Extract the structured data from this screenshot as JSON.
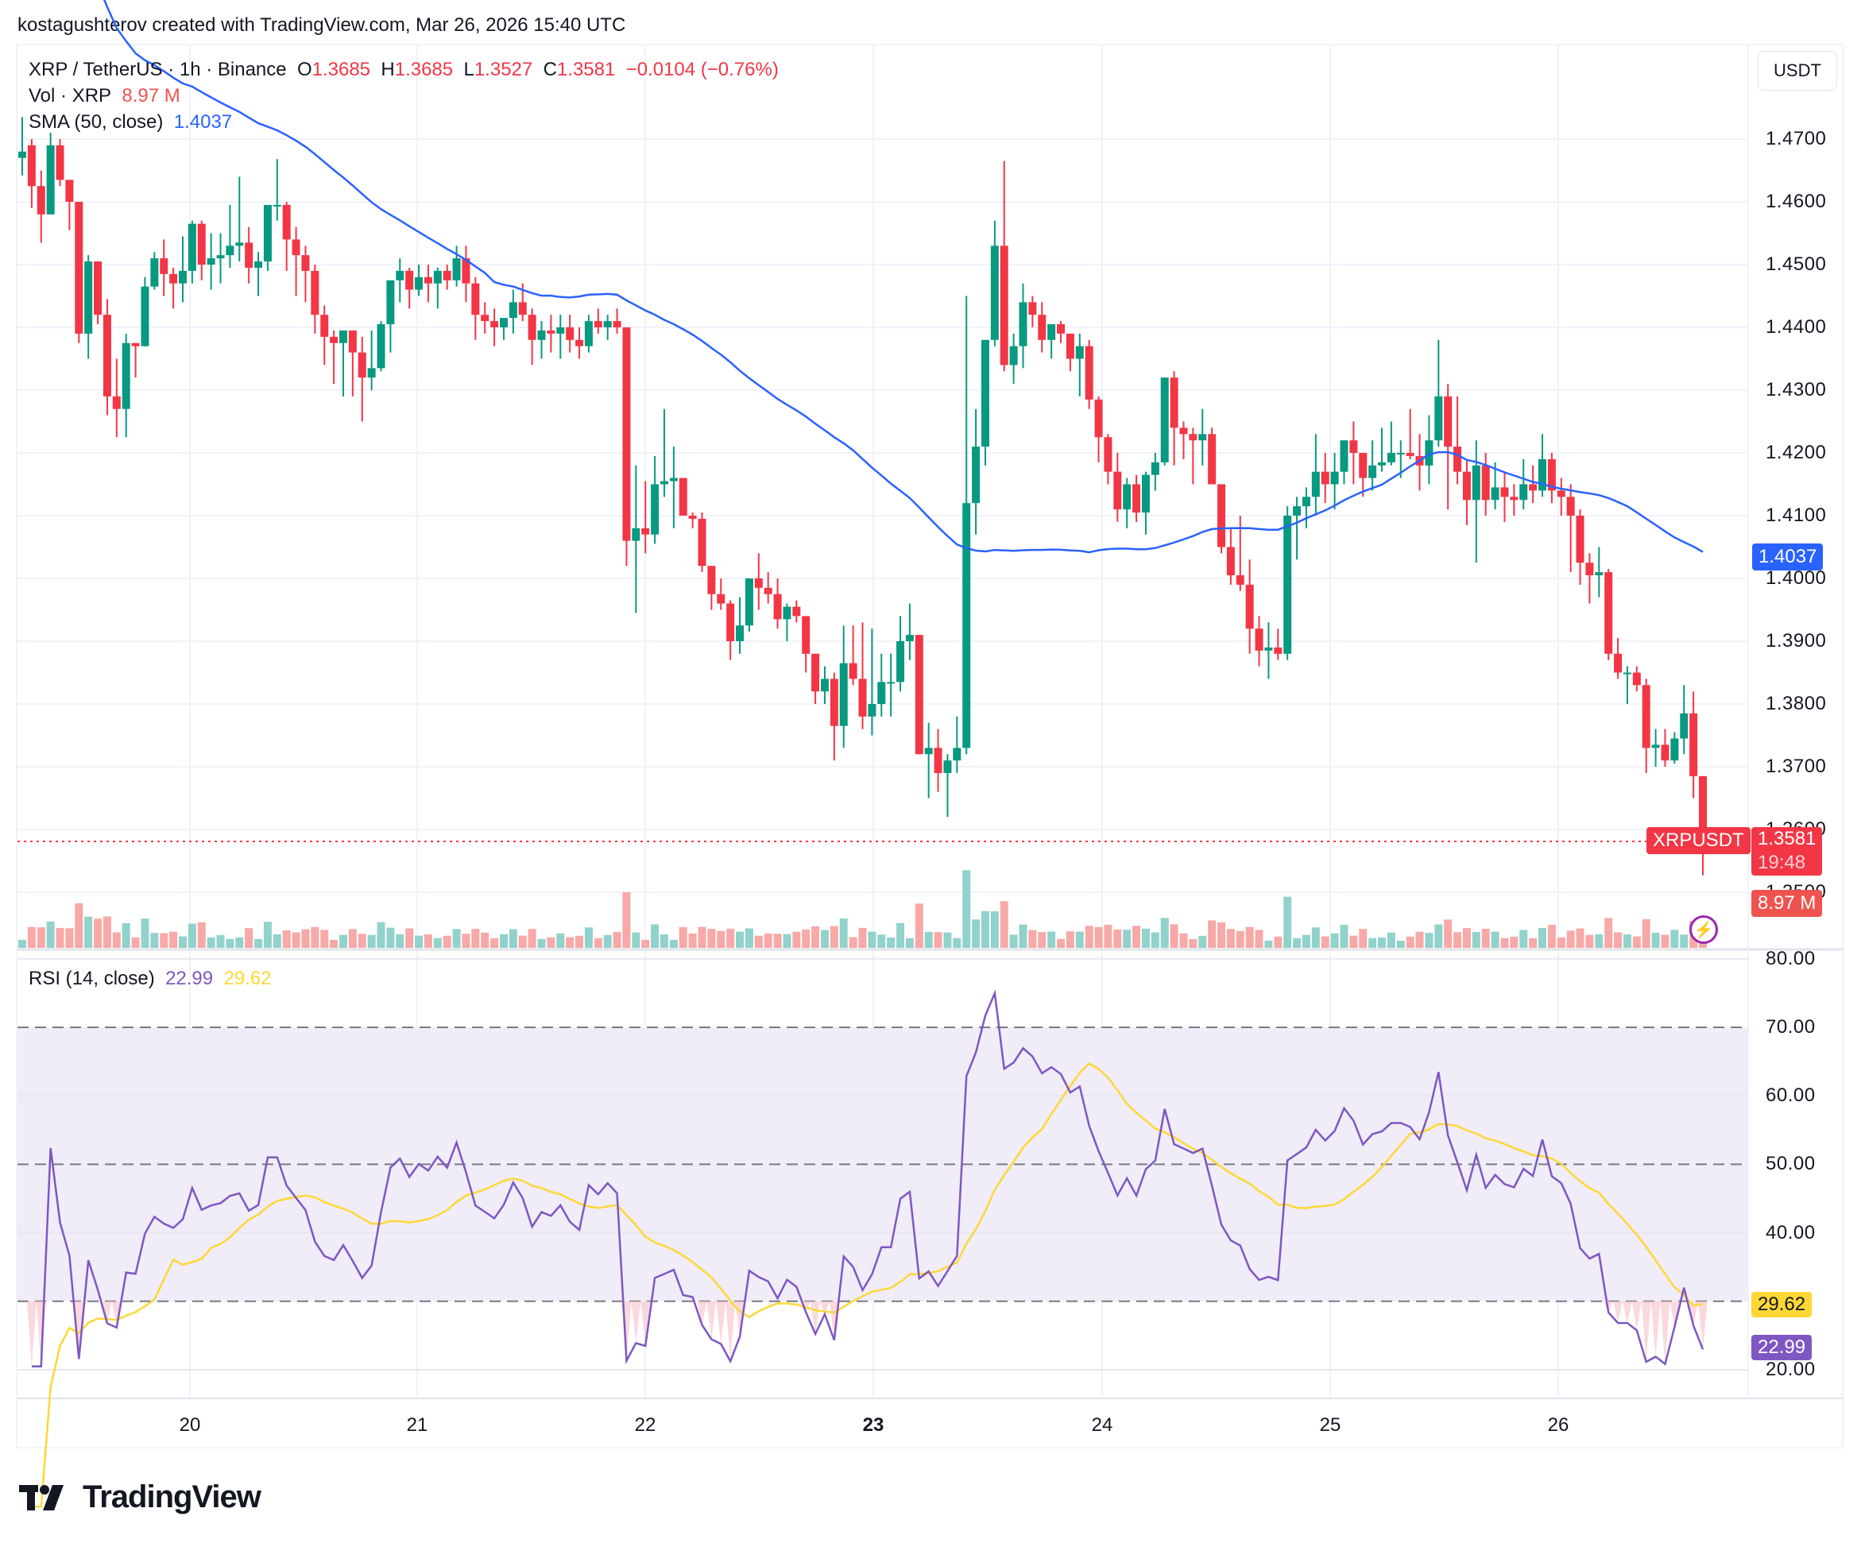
{
  "caption": "kostagushterov created with TradingView.com, Mar 26, 2026 15:40 UTC",
  "symbol_legend": {
    "title": "XRP / TetherUS · 1h · Binance",
    "o_label": "O",
    "o": "1.3685",
    "h_label": "H",
    "h": "1.3685",
    "l_label": "L",
    "l": "1.3527",
    "c_label": "C",
    "c": "1.3581",
    "change": "−0.0104 (−0.76%)"
  },
  "volume_legend": {
    "label": "Vol · XRP",
    "value": "8.97 M"
  },
  "sma_legend": {
    "label": "SMA (50, close)",
    "value": "1.4037"
  },
  "rsi_legend": {
    "label": "RSI (14, close)",
    "rsi": "22.99",
    "ma": "29.62"
  },
  "currency_button": "USDT",
  "price_axis": [
    "1.4700",
    "1.4600",
    "1.4500",
    "1.4400",
    "1.4300",
    "1.4200",
    "1.4100",
    "1.4000",
    "1.3900",
    "1.3800",
    "1.3700",
    "1.3600",
    "1.3500"
  ],
  "rsi_axis": [
    "80.00",
    "70.00",
    "60.00",
    "50.00",
    "40.00",
    "20.00"
  ],
  "time_axis": [
    {
      "label": "20",
      "bold": false
    },
    {
      "label": "21",
      "bold": false
    },
    {
      "label": "22",
      "bold": false
    },
    {
      "label": "23",
      "bold": true
    },
    {
      "label": "24",
      "bold": false
    },
    {
      "label": "25",
      "bold": false
    },
    {
      "label": "26",
      "bold": false
    }
  ],
  "tags": {
    "sma_price": "1.4037",
    "symbol": "XRPUSDT",
    "last_price": "1.3581",
    "countdown": "19:48",
    "volume": "8.97 M",
    "rsi_ma": "29.62",
    "rsi": "22.99"
  },
  "colors": {
    "up": "#089981",
    "down": "#f23645",
    "vol_up": "#92d2cc",
    "vol_down": "#f7a9a7",
    "sma": "#2962ff",
    "rsi": "#7e57c2",
    "rsi_ma": "#fdd835",
    "rsi_band": "#f0ecf8",
    "grid": "#f0f3fa"
  },
  "brand": "TradingView",
  "chart_data": {
    "type": "candlestick",
    "title": "XRP / TetherUS · 1h · Binance",
    "x_ticks": [
      "20",
      "21",
      "22",
      "23",
      "24",
      "25",
      "26"
    ],
    "ylabel": "USDT",
    "ylim": [
      1.345,
      1.478
    ],
    "last": {
      "open": 1.3685,
      "high": 1.3685,
      "low": 1.3527,
      "close": 1.3581,
      "change": -0.0104,
      "change_pct": -0.76
    },
    "candles_ohlc": [
      [
        1.467,
        1.4735,
        1.4642,
        1.468
      ],
      [
        1.469,
        1.47,
        1.459,
        1.4625
      ],
      [
        1.4625,
        1.465,
        1.4535,
        1.458
      ],
      [
        1.458,
        1.471,
        1.458,
        1.469
      ],
      [
        1.469,
        1.47,
        1.4625,
        1.4635
      ],
      [
        1.4635,
        1.461,
        1.4555,
        1.46
      ],
      [
        1.46,
        1.46,
        1.4375,
        1.439
      ],
      [
        1.439,
        1.4515,
        1.435,
        1.4505
      ],
      [
        1.4505,
        1.4505,
        1.4405,
        1.442
      ],
      [
        1.442,
        1.4445,
        1.426,
        1.429
      ],
      [
        1.429,
        1.435,
        1.4225,
        1.427
      ],
      [
        1.427,
        1.439,
        1.4225,
        1.4375
      ],
      [
        1.4375,
        1.4375,
        1.432,
        1.437
      ],
      [
        1.437,
        1.448,
        1.437,
        1.4465
      ],
      [
        1.4465,
        1.452,
        1.446,
        1.451
      ],
      [
        1.451,
        1.454,
        1.445,
        1.4485
      ],
      [
        1.4485,
        1.4495,
        1.443,
        1.447
      ],
      [
        1.447,
        1.4545,
        1.444,
        1.449
      ],
      [
        1.449,
        1.457,
        1.447,
        1.4565
      ],
      [
        1.4565,
        1.457,
        1.4475,
        1.45
      ],
      [
        1.45,
        1.455,
        1.446,
        1.451
      ],
      [
        1.451,
        1.455,
        1.447,
        1.4515
      ],
      [
        1.4515,
        1.4595,
        1.4495,
        1.453
      ],
      [
        1.453,
        1.464,
        1.4505,
        1.4535
      ],
      [
        1.4535,
        1.456,
        1.447,
        1.4495
      ],
      [
        1.4495,
        1.452,
        1.445,
        1.4505
      ],
      [
        1.4505,
        1.456,
        1.449,
        1.4595
      ],
      [
        1.4595,
        1.4668,
        1.457,
        1.4595
      ],
      [
        1.4595,
        1.46,
        1.449,
        1.454
      ],
      [
        1.454,
        1.456,
        1.445,
        1.4515
      ],
      [
        1.4515,
        1.453,
        1.444,
        1.449
      ],
      [
        1.449,
        1.45,
        1.439,
        1.442
      ],
      [
        1.442,
        1.4435,
        1.434,
        1.4385
      ],
      [
        1.4385,
        1.4395,
        1.431,
        1.4375
      ],
      [
        1.4375,
        1.439,
        1.429,
        1.4395
      ],
      [
        1.4395,
        1.4395,
        1.429,
        1.436
      ],
      [
        1.436,
        1.4385,
        1.425,
        1.432
      ],
      [
        1.432,
        1.4395,
        1.43,
        1.4335
      ],
      [
        1.4335,
        1.441,
        1.433,
        1.4405
      ],
      [
        1.4405,
        1.4465,
        1.436,
        1.4475
      ],
      [
        1.4475,
        1.451,
        1.444,
        1.449
      ],
      [
        1.449,
        1.4495,
        1.443,
        1.446
      ],
      [
        1.446,
        1.45,
        1.445,
        1.448
      ],
      [
        1.448,
        1.45,
        1.444,
        1.447
      ],
      [
        1.447,
        1.4495,
        1.443,
        1.449
      ],
      [
        1.449,
        1.45,
        1.446,
        1.4475
      ],
      [
        1.4475,
        1.453,
        1.4465,
        1.451
      ],
      [
        1.451,
        1.453,
        1.444,
        1.447
      ],
      [
        1.447,
        1.448,
        1.438,
        1.442
      ],
      [
        1.442,
        1.444,
        1.439,
        1.441
      ],
      [
        1.441,
        1.443,
        1.437,
        1.44
      ],
      [
        1.44,
        1.441,
        1.438,
        1.4415
      ],
      [
        1.4415,
        1.446,
        1.439,
        1.444
      ],
      [
        1.444,
        1.447,
        1.441,
        1.442
      ],
      [
        1.442,
        1.443,
        1.434,
        1.438
      ],
      [
        1.438,
        1.441,
        1.435,
        1.4395
      ],
      [
        1.4395,
        1.442,
        1.436,
        1.439
      ],
      [
        1.439,
        1.442,
        1.435,
        1.44
      ],
      [
        1.44,
        1.442,
        1.436,
        1.438
      ],
      [
        1.438,
        1.44,
        1.435,
        1.437
      ],
      [
        1.437,
        1.442,
        1.436,
        1.441
      ],
      [
        1.441,
        1.443,
        1.439,
        1.44
      ],
      [
        1.44,
        1.442,
        1.438,
        1.441
      ],
      [
        1.441,
        1.443,
        1.439,
        1.44
      ],
      [
        1.44,
        1.44,
        1.402,
        1.406
      ],
      [
        1.406,
        1.418,
        1.3945,
        1.408
      ],
      [
        1.408,
        1.4155,
        1.404,
        1.407
      ],
      [
        1.407,
        1.4195,
        1.4055,
        1.415
      ],
      [
        1.415,
        1.427,
        1.413,
        1.4155
      ],
      [
        1.4155,
        1.421,
        1.408,
        1.416
      ],
      [
        1.416,
        1.416,
        1.41,
        1.41
      ],
      [
        1.41,
        1.4105,
        1.408,
        1.4095
      ],
      [
        1.4095,
        1.4105,
        1.401,
        1.402
      ],
      [
        1.402,
        1.402,
        1.395,
        1.3975
      ],
      [
        1.3975,
        1.4,
        1.395,
        1.396
      ],
      [
        1.396,
        1.3965,
        1.387,
        1.39
      ],
      [
        1.39,
        1.397,
        1.388,
        1.3925
      ],
      [
        1.3925,
        1.398,
        1.3915,
        1.4
      ],
      [
        1.4,
        1.404,
        1.395,
        1.3985
      ],
      [
        1.3985,
        1.401,
        1.396,
        1.3975
      ],
      [
        1.3975,
        1.4,
        1.392,
        1.3935
      ],
      [
        1.3935,
        1.396,
        1.39,
        1.3955
      ],
      [
        1.3955,
        1.3965,
        1.393,
        1.394
      ],
      [
        1.394,
        1.394,
        1.385,
        1.388
      ],
      [
        1.388,
        1.388,
        1.38,
        1.382
      ],
      [
        1.382,
        1.386,
        1.38,
        1.384
      ],
      [
        1.384,
        1.385,
        1.371,
        1.3765
      ],
      [
        1.3765,
        1.3925,
        1.373,
        1.3865
      ],
      [
        1.3865,
        1.3925,
        1.383,
        1.384
      ],
      [
        1.384,
        1.393,
        1.376,
        1.378
      ],
      [
        1.378,
        1.392,
        1.375,
        1.38
      ],
      [
        1.38,
        1.388,
        1.378,
        1.3835
      ],
      [
        1.3835,
        1.388,
        1.378,
        1.3835
      ],
      [
        1.3835,
        1.394,
        1.382,
        1.39
      ],
      [
        1.39,
        1.396,
        1.387,
        1.391
      ],
      [
        1.391,
        1.391,
        1.372,
        1.372
      ],
      [
        1.372,
        1.377,
        1.365,
        1.373
      ],
      [
        1.373,
        1.376,
        1.366,
        1.369
      ],
      [
        1.369,
        1.372,
        1.362,
        1.371
      ],
      [
        1.371,
        1.378,
        1.369,
        1.373
      ],
      [
        1.373,
        1.445,
        1.372,
        1.412
      ],
      [
        1.412,
        1.427,
        1.407,
        1.421
      ],
      [
        1.421,
        1.431,
        1.418,
        1.438
      ],
      [
        1.438,
        1.457,
        1.437,
        1.453
      ],
      [
        1.453,
        1.4665,
        1.433,
        1.434
      ],
      [
        1.434,
        1.439,
        1.431,
        1.437
      ],
      [
        1.437,
        1.447,
        1.4335,
        1.444
      ],
      [
        1.444,
        1.445,
        1.44,
        1.442
      ],
      [
        1.442,
        1.444,
        1.436,
        1.438
      ],
      [
        1.438,
        1.4405,
        1.435,
        1.4405
      ],
      [
        1.4405,
        1.441,
        1.4375,
        1.439
      ],
      [
        1.439,
        1.438,
        1.433,
        1.435
      ],
      [
        1.435,
        1.439,
        1.429,
        1.437
      ],
      [
        1.437,
        1.438,
        1.427,
        1.4285
      ],
      [
        1.4285,
        1.429,
        1.4185,
        1.4225
      ],
      [
        1.4225,
        1.423,
        1.415,
        1.417
      ],
      [
        1.417,
        1.42,
        1.409,
        1.411
      ],
      [
        1.411,
        1.416,
        1.408,
        1.415
      ],
      [
        1.415,
        1.4165,
        1.409,
        1.4105
      ],
      [
        1.4105,
        1.417,
        1.407,
        1.4165
      ],
      [
        1.4165,
        1.42,
        1.414,
        1.4185
      ],
      [
        1.4185,
        1.432,
        1.418,
        1.432
      ],
      [
        1.432,
        1.433,
        1.418,
        1.424
      ],
      [
        1.424,
        1.425,
        1.419,
        1.423
      ],
      [
        1.423,
        1.424,
        1.415,
        1.422
      ],
      [
        1.422,
        1.427,
        1.418,
        1.423
      ],
      [
        1.423,
        1.424,
        1.416,
        1.415
      ],
      [
        1.415,
        1.4145,
        1.404,
        1.405
      ],
      [
        1.405,
        1.408,
        1.399,
        1.4005
      ],
      [
        1.4005,
        1.41,
        1.398,
        1.399
      ],
      [
        1.399,
        1.403,
        1.388,
        1.392
      ],
      [
        1.392,
        1.394,
        1.386,
        1.3885
      ],
      [
        1.3885,
        1.393,
        1.384,
        1.389
      ],
      [
        1.389,
        1.392,
        1.387,
        1.388
      ],
      [
        1.388,
        1.4115,
        1.387,
        1.41
      ],
      [
        1.41,
        1.413,
        1.403,
        1.4115
      ],
      [
        1.4115,
        1.4145,
        1.408,
        1.413
      ],
      [
        1.413,
        1.423,
        1.41,
        1.417
      ],
      [
        1.417,
        1.42,
        1.412,
        1.415
      ],
      [
        1.415,
        1.42,
        1.411,
        1.417
      ],
      [
        1.417,
        1.422,
        1.415,
        1.422
      ],
      [
        1.422,
        1.425,
        1.415,
        1.42
      ],
      [
        1.42,
        1.42,
        1.413,
        1.416
      ],
      [
        1.416,
        1.422,
        1.414,
        1.418
      ],
      [
        1.418,
        1.424,
        1.417,
        1.4185
      ],
      [
        1.4185,
        1.425,
        1.418,
        1.42
      ],
      [
        1.42,
        1.422,
        1.416,
        1.42
      ],
      [
        1.42,
        1.427,
        1.419,
        1.4195
      ],
      [
        1.4195,
        1.423,
        1.414,
        1.418
      ],
      [
        1.418,
        1.426,
        1.415,
        1.422
      ],
      [
        1.422,
        1.438,
        1.421,
        1.429
      ],
      [
        1.429,
        1.431,
        1.411,
        1.421
      ],
      [
        1.421,
        1.429,
        1.415,
        1.417
      ],
      [
        1.417,
        1.419,
        1.4085,
        1.4125
      ],
      [
        1.4125,
        1.422,
        1.4025,
        1.418
      ],
      [
        1.418,
        1.42,
        1.41,
        1.4125
      ],
      [
        1.4125,
        1.4185,
        1.411,
        1.4145
      ],
      [
        1.4145,
        1.417,
        1.409,
        1.413
      ],
      [
        1.413,
        1.415,
        1.41,
        1.4125
      ],
      [
        1.4125,
        1.419,
        1.411,
        1.415
      ],
      [
        1.415,
        1.418,
        1.412,
        1.414
      ],
      [
        1.414,
        1.423,
        1.413,
        1.419
      ],
      [
        1.419,
        1.42,
        1.412,
        1.414
      ],
      [
        1.414,
        1.416,
        1.41,
        1.413
      ],
      [
        1.413,
        1.415,
        1.401,
        1.41
      ],
      [
        1.41,
        1.411,
        1.399,
        1.4025
      ],
      [
        1.4025,
        1.404,
        1.396,
        1.4005
      ],
      [
        1.4005,
        1.405,
        1.397,
        1.401
      ],
      [
        1.401,
        1.4015,
        1.387,
        1.388
      ],
      [
        1.388,
        1.3905,
        1.384,
        1.385
      ],
      [
        1.385,
        1.386,
        1.38,
        1.385
      ],
      [
        1.385,
        1.386,
        1.382,
        1.383
      ],
      [
        1.383,
        1.384,
        1.369,
        1.373
      ],
      [
        1.373,
        1.376,
        1.37,
        1.3735
      ],
      [
        1.3735,
        1.376,
        1.37,
        1.371
      ],
      [
        1.371,
        1.3755,
        1.3705,
        1.3745
      ],
      [
        1.3745,
        1.383,
        1.372,
        1.3785
      ],
      [
        1.3785,
        1.382,
        1.365,
        1.3685
      ],
      [
        1.3685,
        1.3685,
        1.3527,
        1.3581
      ]
    ],
    "sma50_last": 1.4037,
    "volume_last": "8.97 M",
    "rsi": {
      "period": 14,
      "last": 22.99,
      "ma_last": 29.62,
      "levels": {
        "upper": 70,
        "middle": 50,
        "lower": 30
      },
      "ylim": [
        20,
        80
      ]
    }
  }
}
